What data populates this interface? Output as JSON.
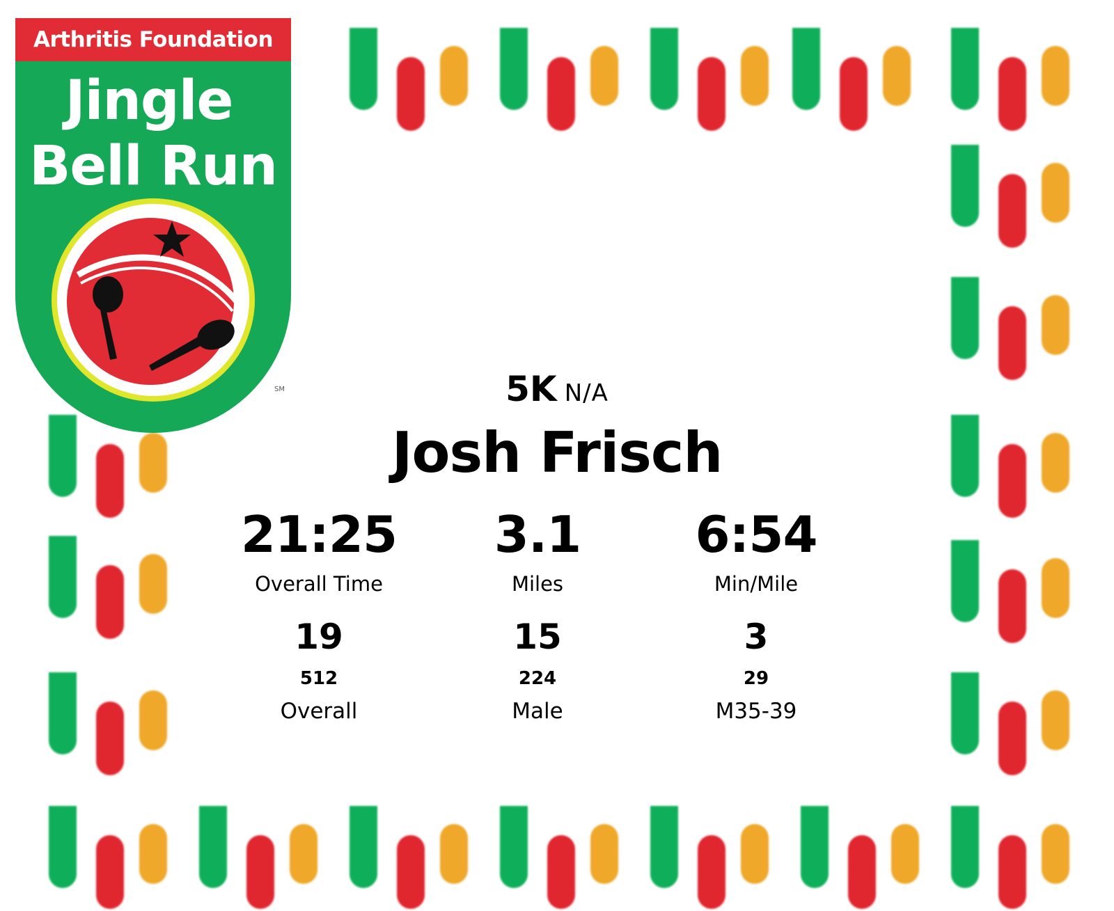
{
  "logo": {
    "brand": "Arthritis Foundation",
    "title_line1": "Jingle",
    "title_line2": "Bell Run",
    "mark": "SM",
    "icon": "jingle-bell-icon",
    "colors": {
      "green": "#15a857",
      "red": "#e22c35",
      "yellow": "#efa82a"
    }
  },
  "race": {
    "name": "5K",
    "division": "N/A"
  },
  "athlete": {
    "name": "Josh Frisch"
  },
  "stats": [
    {
      "value": "21:25",
      "label": "Overall Time"
    },
    {
      "value": "3.1",
      "label": "Miles"
    },
    {
      "value": "6:54",
      "label": "Min/Mile"
    }
  ],
  "placements": [
    {
      "place": "19",
      "total": "512",
      "label": "Overall"
    },
    {
      "place": "15",
      "total": "224",
      "label": "Male"
    },
    {
      "place": "3",
      "total": "29",
      "label": "M35-39"
    }
  ]
}
